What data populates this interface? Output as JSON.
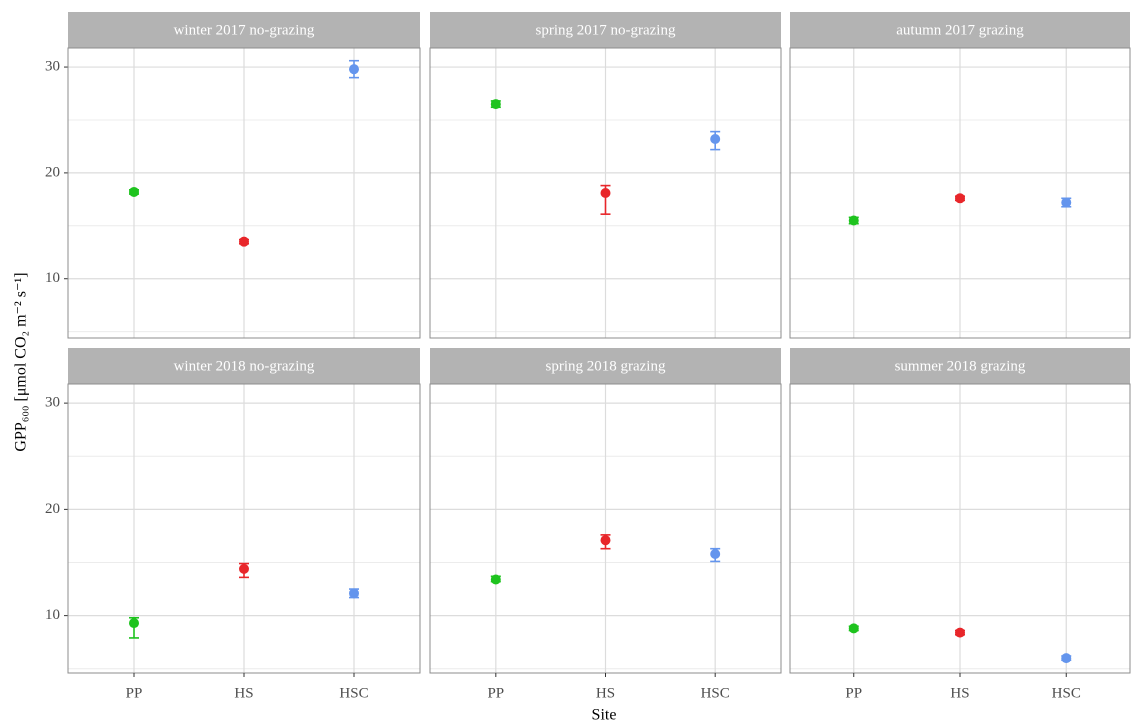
{
  "chart_data": [
    {
      "type": "pointrange",
      "title": "winter 2017 no-grazing",
      "ylabel": "GPP₆₀₀ [μmol CO₂ m⁻² s⁻¹]",
      "values": [
        18.2,
        13.5,
        29.8
      ],
      "lower": [
        18.0,
        13.3,
        29.0
      ],
      "upper": [
        18.4,
        13.7,
        30.6
      ],
      "colors": [
        "#1ec31e",
        "#e8262a",
        "#6495ed"
      ],
      "ylim": [
        4.4,
        31.8
      ],
      "yticks": [
        10,
        20,
        30
      ],
      "grid": true
    },
    {
      "type": "pointrange",
      "title": "spring 2017 no-grazing",
      "values": [
        26.5,
        18.1,
        23.2
      ],
      "lower": [
        26.2,
        16.1,
        22.2
      ],
      "upper": [
        26.8,
        18.8,
        23.9
      ],
      "colors": [
        "#1ec31e",
        "#e8262a",
        "#6495ed"
      ],
      "ylim": [
        4.4,
        31.8
      ],
      "yticks": [
        10,
        20,
        30
      ],
      "grid": true
    },
    {
      "type": "pointrange",
      "title": "autumn 2017 grazing",
      "values": [
        15.5,
        17.6,
        17.2
      ],
      "lower": [
        15.2,
        17.4,
        16.8
      ],
      "upper": [
        15.8,
        17.8,
        17.6
      ],
      "colors": [
        "#1ec31e",
        "#e8262a",
        "#6495ed"
      ],
      "ylim": [
        4.4,
        31.8
      ],
      "yticks": [
        10,
        20,
        30
      ],
      "grid": true
    },
    {
      "type": "pointrange",
      "title": "winter 2018 no-grazing",
      "categories": [
        "PP",
        "HS",
        "HSC"
      ],
      "values": [
        9.3,
        14.4,
        12.1
      ],
      "lower": [
        7.9,
        13.6,
        11.7
      ],
      "upper": [
        9.8,
        14.9,
        12.5
      ],
      "colors": [
        "#1ec31e",
        "#e8262a",
        "#6495ed"
      ],
      "ylim": [
        4.6,
        31.8
      ],
      "yticks": [
        10,
        20,
        30
      ],
      "grid": true
    },
    {
      "type": "pointrange",
      "title": "spring 2018 grazing",
      "categories": [
        "PP",
        "HS",
        "HSC"
      ],
      "xlabel": "Site",
      "values": [
        13.4,
        17.1,
        15.8
      ],
      "lower": [
        13.2,
        16.3,
        15.1
      ],
      "upper": [
        13.7,
        17.6,
        16.3
      ],
      "colors": [
        "#1ec31e",
        "#e8262a",
        "#6495ed"
      ],
      "ylim": [
        4.6,
        31.8
      ],
      "yticks": [
        10,
        20,
        30
      ],
      "grid": true
    },
    {
      "type": "pointrange",
      "title": "summer 2018 grazing",
      "categories": [
        "PP",
        "HS",
        "HSC"
      ],
      "values": [
        8.8,
        8.4,
        6.0
      ],
      "lower": [
        8.6,
        8.2,
        5.8
      ],
      "upper": [
        9.0,
        8.6,
        6.2
      ],
      "colors": [
        "#1ec31e",
        "#e8262a",
        "#6495ed"
      ],
      "ylim": [
        4.6,
        31.8
      ],
      "yticks": [
        10,
        20,
        30
      ],
      "grid": true
    }
  ]
}
